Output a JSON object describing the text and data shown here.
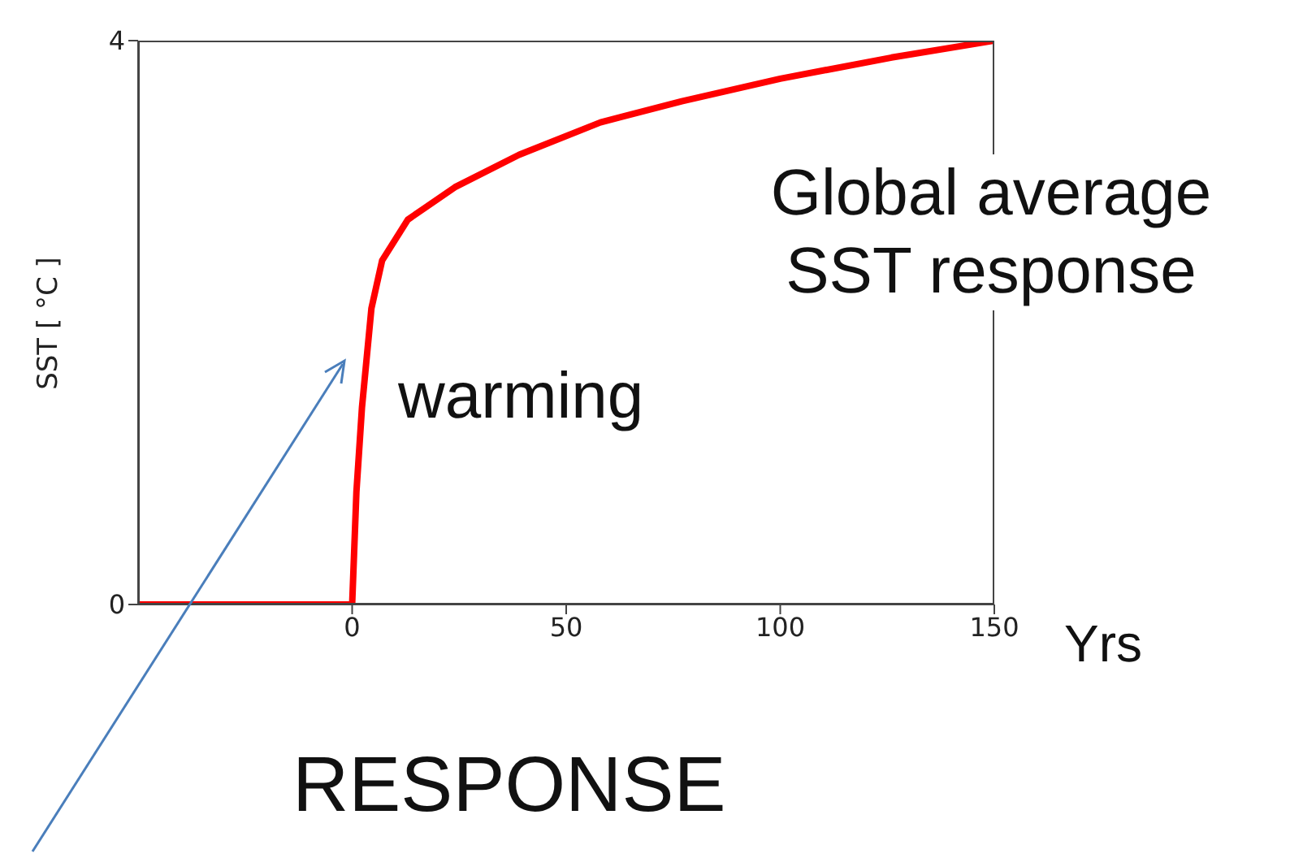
{
  "chart_data": {
    "type": "line",
    "xlabel": "Yrs",
    "ylabel": "SST [ °C ]",
    "x": [
      -50,
      0,
      1,
      2.3,
      4.5,
      7,
      13,
      24,
      39,
      58,
      77,
      100,
      126,
      150
    ],
    "series": [
      {
        "color": "#ff0000",
        "values": [
          0,
          0,
          0.8,
          1.4,
          2.1,
          2.44,
          2.73,
          2.96,
          3.19,
          3.42,
          3.57,
          3.73,
          3.88,
          4.0
        ]
      }
    ],
    "xlim": [
      -50,
      150
    ],
    "xticks": [
      0,
      50,
      100,
      150
    ],
    "ylim": [
      0,
      4
    ],
    "yticks": [
      0,
      4
    ],
    "annotations": [
      "Global  average\nSST response",
      "warming",
      "RESPONSE"
    ]
  }
}
